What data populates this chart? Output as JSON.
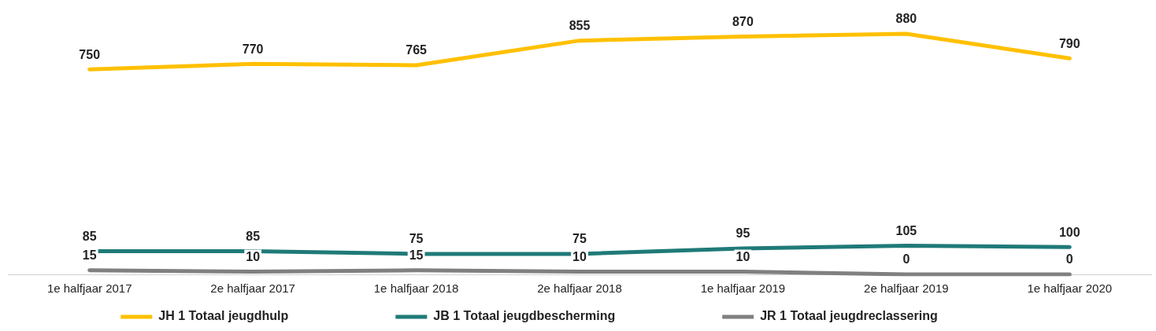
{
  "chart_data": {
    "type": "line",
    "categories": [
      "1e halfjaar 2017",
      "2e halfjaar 2017",
      "1e halfjaar 2018",
      "2e halfjaar 2018",
      "1e halfjaar 2019",
      "2e halfjaar 2019",
      "1e halfjaar 2020"
    ],
    "series": [
      {
        "name": "JH 1 Totaal jeugdhulp",
        "color": "#ffc000",
        "values": [
          750,
          770,
          765,
          855,
          870,
          880,
          790
        ]
      },
      {
        "name": "JB 1 Totaal jeugdbescherming",
        "color": "#1f7a78",
        "values": [
          85,
          85,
          75,
          75,
          95,
          105,
          100
        ]
      },
      {
        "name": "JR 1 Totaal jeugdreclassering",
        "color": "#808080",
        "values": [
          15,
          10,
          15,
          10,
          10,
          0,
          0
        ]
      }
    ],
    "data_labels": true,
    "legend": "bottom",
    "grid": false,
    "marker": "none",
    "line_style": "solid",
    "tick_labels": "x"
  }
}
